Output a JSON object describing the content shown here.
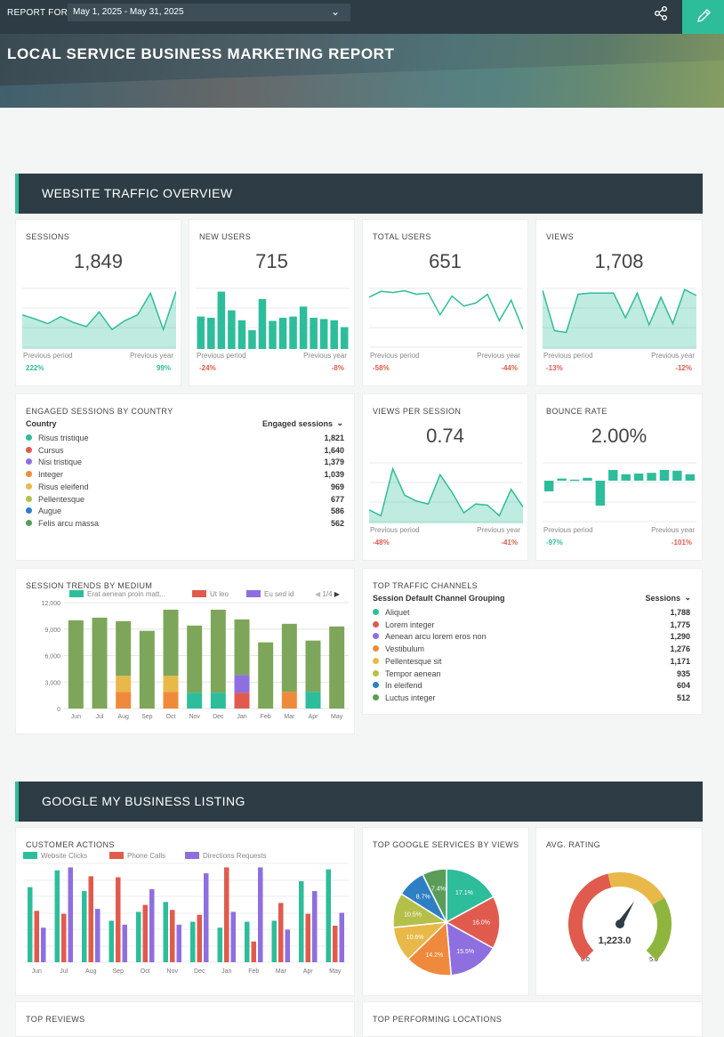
{
  "topbar": {
    "report_for": "REPORT FOR",
    "date_range": "May 1, 2025 - May 31, 2025"
  },
  "header": {
    "title": "LOCAL SERVICE BUSINESS MARKETING REPORT"
  },
  "sections": {
    "traffic": "WEBSITE TRAFFIC OVERVIEW",
    "gmb": "GOOGLE MY BUSINESS LISTING"
  },
  "kpis": [
    {
      "title": "SESSIONS",
      "value": "1,849",
      "prev_label": "Previous period",
      "prev_value": "222%",
      "year_label": "Previous year",
      "year_value": "99%",
      "chart": "area",
      "series": [
        0.55,
        0.48,
        0.4,
        0.52,
        0.42,
        0.35,
        0.6,
        0.3,
        0.45,
        0.55,
        0.92,
        0.3,
        0.95
      ]
    },
    {
      "title": "NEW USERS",
      "value": "715",
      "prev_label": "Previous period",
      "prev_value": "-24%",
      "year_label": "Previous year",
      "year_value": "-8%",
      "chart": "bar",
      "series": [
        0.52,
        0.5,
        0.92,
        0.62,
        0.46,
        0.3,
        0.8,
        0.45,
        0.5,
        0.52,
        0.68,
        0.5,
        0.48,
        0.46,
        0.35
      ]
    },
    {
      "title": "TOTAL USERS",
      "value": "651",
      "prev_label": "Previous period",
      "prev_value": "-58%",
      "year_label": "Previous year",
      "year_value": "-44%",
      "chart": "line",
      "series": [
        0.85,
        0.95,
        0.93,
        0.96,
        0.9,
        0.92,
        0.55,
        0.87,
        0.7,
        0.75,
        0.9,
        0.45,
        0.8,
        0.3
      ]
    },
    {
      "title": "VIEWS",
      "value": "1,708",
      "prev_label": "Previous period",
      "prev_value": "-13%",
      "year_label": "Previous year",
      "year_value": "-12%",
      "chart": "area",
      "series": [
        0.97,
        0.28,
        0.25,
        0.9,
        0.92,
        0.92,
        0.92,
        0.5,
        0.92,
        0.38,
        0.85,
        0.4,
        0.98,
        0.88
      ]
    },
    {
      "title": "VIEWS PER SESSION",
      "value": "0.74",
      "prev_label": "Previous period",
      "prev_value": "-48%",
      "year_label": "Previous year",
      "year_value": "-41%",
      "chart": "area",
      "series": [
        0.2,
        0.1,
        0.9,
        0.45,
        0.35,
        0.3,
        0.8,
        0.5,
        0.15,
        0.3,
        0.28,
        0.1,
        0.55,
        0.25
      ]
    },
    {
      "title": "BOUNCE RATE",
      "value": "2.00%",
      "prev_label": "Previous period",
      "prev_value": "-97%",
      "year_label": "Previous year",
      "year_value": "-101%",
      "chart": "posneg",
      "series": [
        -0.3,
        0.06,
        0.03,
        0.08,
        -0.7,
        0.3,
        0.18,
        0.2,
        0.22,
        0.3,
        0.28,
        0.18
      ]
    }
  ],
  "countries": {
    "title": "ENGAGED SESSIONS BY COUNTRY",
    "col1": "Country",
    "col2": "Engaged sessions",
    "rows": [
      {
        "label": "Risus tristique",
        "value": "1,821",
        "color": "#2ebd9a"
      },
      {
        "label": "Cursus",
        "value": "1,640",
        "color": "#e05b4d"
      },
      {
        "label": "Nisi tristique",
        "value": "1,379",
        "color": "#8e6fe0"
      },
      {
        "label": "Integer",
        "value": "1,039",
        "color": "#ef8a3c"
      },
      {
        "label": "Risus eleifend",
        "value": "969",
        "color": "#e8b949"
      },
      {
        "label": "Pellentesque",
        "value": "677",
        "color": "#b5c04a"
      },
      {
        "label": "Augue",
        "value": "586",
        "color": "#2e7fc4"
      },
      {
        "label": "Felis arcu massa",
        "value": "562",
        "color": "#5b9c58"
      }
    ]
  },
  "channels": {
    "title": "TOP TRAFFIC CHANNELS",
    "col1": "Session Default Channel Grouping",
    "col2": "Sessions",
    "rows": [
      {
        "label": "Aliquet",
        "value": "1,788",
        "color": "#2ebd9a"
      },
      {
        "label": "Lorem integer",
        "value": "1,775",
        "color": "#e05b4d"
      },
      {
        "label": "Aenean arcu lorem eros non",
        "value": "1,290",
        "color": "#8e6fe0"
      },
      {
        "label": "Vestibulum",
        "value": "1,276",
        "color": "#ef8a3c"
      },
      {
        "label": "Pellentesque sit",
        "value": "1,171",
        "color": "#e8b949"
      },
      {
        "label": "Tempor aenean",
        "value": "935",
        "color": "#b5c04a"
      },
      {
        "label": "In eleifend",
        "value": "604",
        "color": "#2e7fc4"
      },
      {
        "label": "Luctus integer",
        "value": "512",
        "color": "#5b9c58"
      }
    ]
  },
  "chart_data": [
    {
      "type": "bar",
      "stacked": true,
      "title": "SESSION TRENDS BY MEDIUM",
      "legend_page": "1/4",
      "categories": [
        "Jun",
        "Jul",
        "Aug",
        "Sep",
        "Oct",
        "Nov",
        "Dec",
        "Jan",
        "Feb",
        "Mar",
        "Apr",
        "May"
      ],
      "ylim": [
        0,
        12000
      ],
      "yticks": [
        "0",
        "3,000",
        "6,000",
        "9,000",
        "12,000"
      ],
      "legend": [
        "Erat aenean proin matt...",
        "Ut leo",
        "Eu sed id"
      ],
      "series": [
        {
          "color": "#2ebd9a",
          "values": [
            0,
            0,
            0,
            0,
            0,
            1800,
            1800,
            0,
            0,
            0,
            1900,
            0
          ]
        },
        {
          "color": "#ef8a3c",
          "values": [
            0,
            0,
            1900,
            0,
            1900,
            0,
            0,
            0,
            0,
            1900,
            0,
            0
          ]
        },
        {
          "color": "#e05b4d",
          "values": [
            0,
            0,
            0,
            0,
            0,
            0,
            0,
            1800,
            0,
            0,
            0,
            0
          ]
        },
        {
          "color": "#e8b949",
          "values": [
            0,
            0,
            1800,
            0,
            1800,
            0,
            0,
            0,
            0,
            0,
            0,
            0
          ]
        },
        {
          "color": "#8e6fe0",
          "values": [
            0,
            0,
            0,
            0,
            0,
            0,
            0,
            2000,
            0,
            0,
            0,
            0
          ]
        },
        {
          "color": "#7ea65a",
          "values": [
            10000,
            10300,
            6200,
            8800,
            7500,
            7600,
            9400,
            6300,
            7500,
            7700,
            5800,
            9300
          ]
        }
      ]
    },
    {
      "type": "bar",
      "title": "CUSTOMER ACTIONS",
      "categories": [
        "Jun",
        "Jul",
        "Aug",
        "Sep",
        "Oct",
        "Nov",
        "Dec",
        "Jan",
        "Feb",
        "Mar",
        "Apr",
        "May"
      ],
      "series": [
        {
          "name": "Website Clicks",
          "color": "#2ebd9a",
          "values": [
            0.76,
            0.93,
            0.72,
            0.42,
            0.51,
            0.61,
            0.41,
            0.35,
            0.41,
            0.42,
            0.82,
            0.94
          ]
        },
        {
          "name": "Phone Calls",
          "color": "#e05b4d",
          "values": [
            0.52,
            0.49,
            0.87,
            0.86,
            0.58,
            0.53,
            0.48,
            0.96,
            0.21,
            0.6,
            0.49,
            0.37
          ]
        },
        {
          "name": "Directions Requests",
          "color": "#8e6fe0",
          "values": [
            0.35,
            0.96,
            0.54,
            0.38,
            0.74,
            0.38,
            0.9,
            0.51,
            0.96,
            0.33,
            0.72,
            0.5
          ]
        }
      ]
    },
    {
      "type": "pie",
      "title": "TOP GOOGLE SERVICES BY VIEWS",
      "values": [
        17.1,
        16.0,
        15.5,
        14.2,
        10.6,
        10.5,
        8.7,
        7.4
      ],
      "labels": [
        "17.1%",
        "16.0%",
        "15.5%",
        "14.2%",
        "10.6%",
        "10.5%",
        "8.7%",
        "7.4%"
      ],
      "colors": [
        "#2ebd9a",
        "#e05b4d",
        "#8e6fe0",
        "#ef8a3c",
        "#e8b949",
        "#b5c04a",
        "#2e7fc4",
        "#5b9c58"
      ]
    }
  ],
  "rating": {
    "title": "AVG. RATING",
    "value": "1,223.0",
    "min": "0.0",
    "max": "5.0",
    "level": 0.62
  },
  "bottom": {
    "reviews": "TOP REVIEWS",
    "locations": "TOP PERFORMING LOCATIONS"
  },
  "icons": {
    "share": "share-icon",
    "edit": "pencil-icon",
    "dropdown": "chevron-down-icon"
  }
}
